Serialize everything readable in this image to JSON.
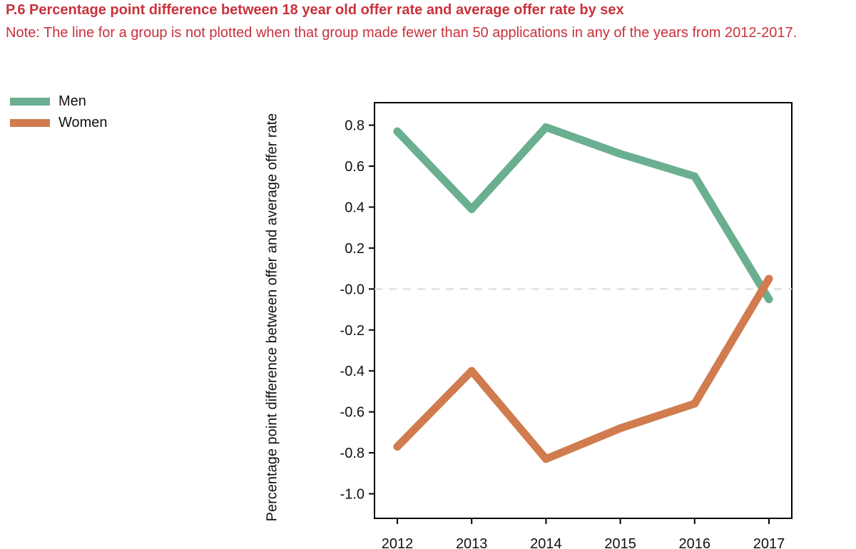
{
  "title": "P.6 Percentage point difference between 18 year old offer rate and average offer rate by sex",
  "note": "Note: The line for a group is not plotted when that group made fewer than 50 applications in any of the years from 2012-2017.",
  "chart_data": {
    "type": "line",
    "title": "P.6 Percentage point difference between 18 year old offer rate and average offer rate by sex",
    "xlabel": "",
    "ylabel": "Percentage point difference between offer and average offer rate",
    "categories": [
      "2012",
      "2013",
      "2014",
      "2015",
      "2016",
      "2017"
    ],
    "y_ticks": [
      "0.8",
      "0.6",
      "0.4",
      "0.2",
      "-0.0",
      "-0.2",
      "-0.4",
      "-0.6",
      "-0.8",
      "-1.0"
    ],
    "ylim": [
      -1.12,
      0.91
    ],
    "reference_line": 0,
    "grid": false,
    "legend_position": "top-left",
    "series": [
      {
        "name": "Men",
        "color": "#6aaf90",
        "values": [
          0.77,
          0.39,
          0.79,
          0.66,
          0.55,
          -0.05
        ]
      },
      {
        "name": "Women",
        "color": "#d07c4e",
        "values": [
          -0.77,
          -0.4,
          -0.83,
          -0.68,
          -0.56,
          0.05
        ]
      }
    ]
  }
}
